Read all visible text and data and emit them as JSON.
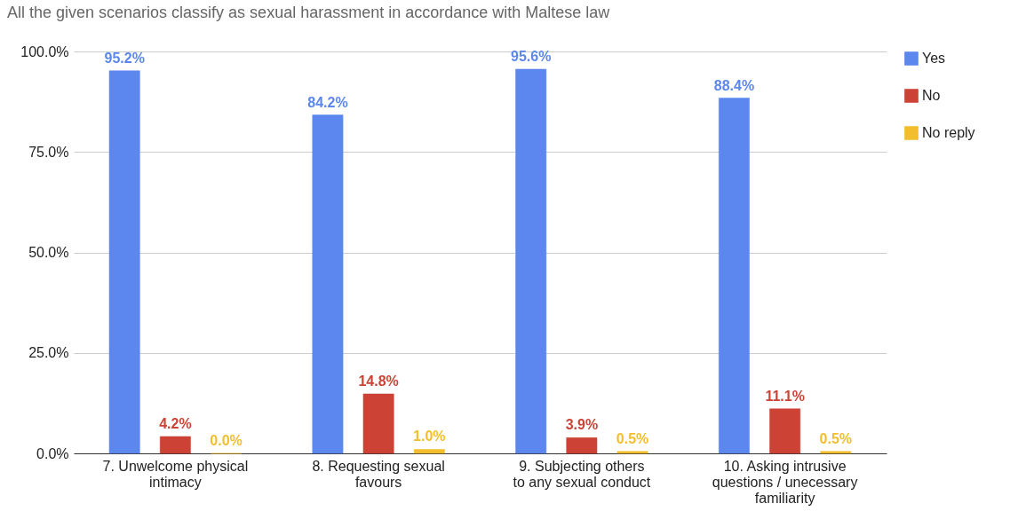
{
  "chart_data": {
    "type": "bar",
    "title": "All the given scenarios classify as sexual harassment in accordance with Maltese law",
    "categories": [
      "7. Unwelcome physical intimacy",
      "8. Requesting sexual favours",
      "9. Subjecting others to any sexual conduct",
      "10. Asking intrusive questions / unecessary familiarity"
    ],
    "series": [
      {
        "name": "Yes",
        "color": "#5b87ee",
        "values": [
          95.2,
          84.2,
          95.6,
          88.4
        ],
        "value_labels": [
          "95.2%",
          "84.2%",
          "95.6%",
          "88.4%"
        ]
      },
      {
        "name": "No",
        "color": "#cc4335",
        "values": [
          4.2,
          14.8,
          3.9,
          11.1
        ],
        "value_labels": [
          "4.2%",
          "14.8%",
          "3.9%",
          "11.1%"
        ]
      },
      {
        "name": "No reply",
        "color": "#f2be2e",
        "values": [
          0.0,
          1.0,
          0.5,
          0.5
        ],
        "value_labels": [
          "0.0%",
          "1.0%",
          "0.5%",
          "0.5%"
        ]
      }
    ],
    "ylim": [
      0,
      100
    ],
    "yticks": [
      {
        "value": 0,
        "label": "0.0%"
      },
      {
        "value": 25,
        "label": "25.0%"
      },
      {
        "value": 50,
        "label": "50.0%"
      },
      {
        "value": 75,
        "label": "75.0%"
      },
      {
        "value": 100,
        "label": "100.0%"
      }
    ],
    "grid": "y",
    "legend": "top right"
  }
}
